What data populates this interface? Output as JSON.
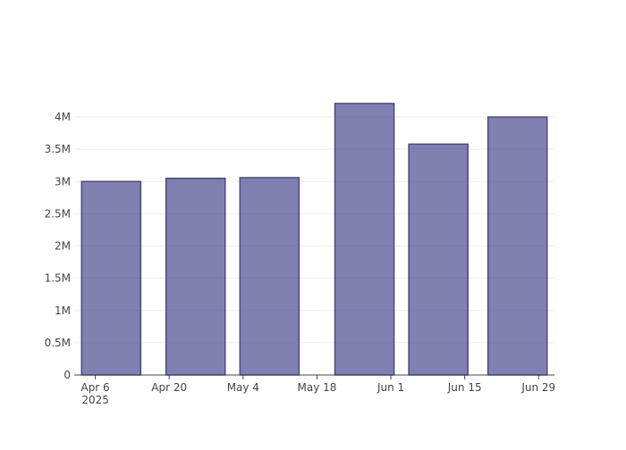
{
  "chart_data": {
    "type": "bar",
    "x": [
      "2025-04-09",
      "2025-04-25",
      "2025-05-09",
      "2025-05-27",
      "2025-06-10",
      "2025-06-25"
    ],
    "values": [
      3000000,
      3050000,
      3060000,
      4210000,
      3580000,
      4000000
    ],
    "color": "rgba(68,68,140,0.68)",
    "edge_color": "#4a4a80",
    "xlim": [
      "2025-04-02",
      "2025-07-02"
    ],
    "xticks": [
      {
        "value": "2025-04-06",
        "label": "Apr 6"
      },
      {
        "value": "2025-04-20",
        "label": "Apr 20"
      },
      {
        "value": "2025-05-04",
        "label": "May 4"
      },
      {
        "value": "2025-05-18",
        "label": "May 18"
      },
      {
        "value": "2025-06-01",
        "label": "Jun 1"
      },
      {
        "value": "2025-06-15",
        "label": "Jun 15"
      },
      {
        "value": "2025-06-29",
        "label": "Jun 29"
      }
    ],
    "x_year_label": "2025",
    "ylim": [
      0,
      4430000
    ],
    "yticks": [
      0,
      {
        "value": 500000,
        "label": "0.5M"
      },
      {
        "value": 1000000,
        "label": "1M"
      },
      {
        "value": 1500000,
        "label": "1.5M"
      },
      {
        "value": 2000000,
        "label": "2M"
      },
      {
        "value": 2500000,
        "label": "2.5M"
      },
      {
        "value": 3000000,
        "label": "3M"
      },
      {
        "value": 3500000,
        "label": "3.5M"
      },
      {
        "value": 4000000,
        "label": "4M"
      }
    ],
    "grid": true
  }
}
